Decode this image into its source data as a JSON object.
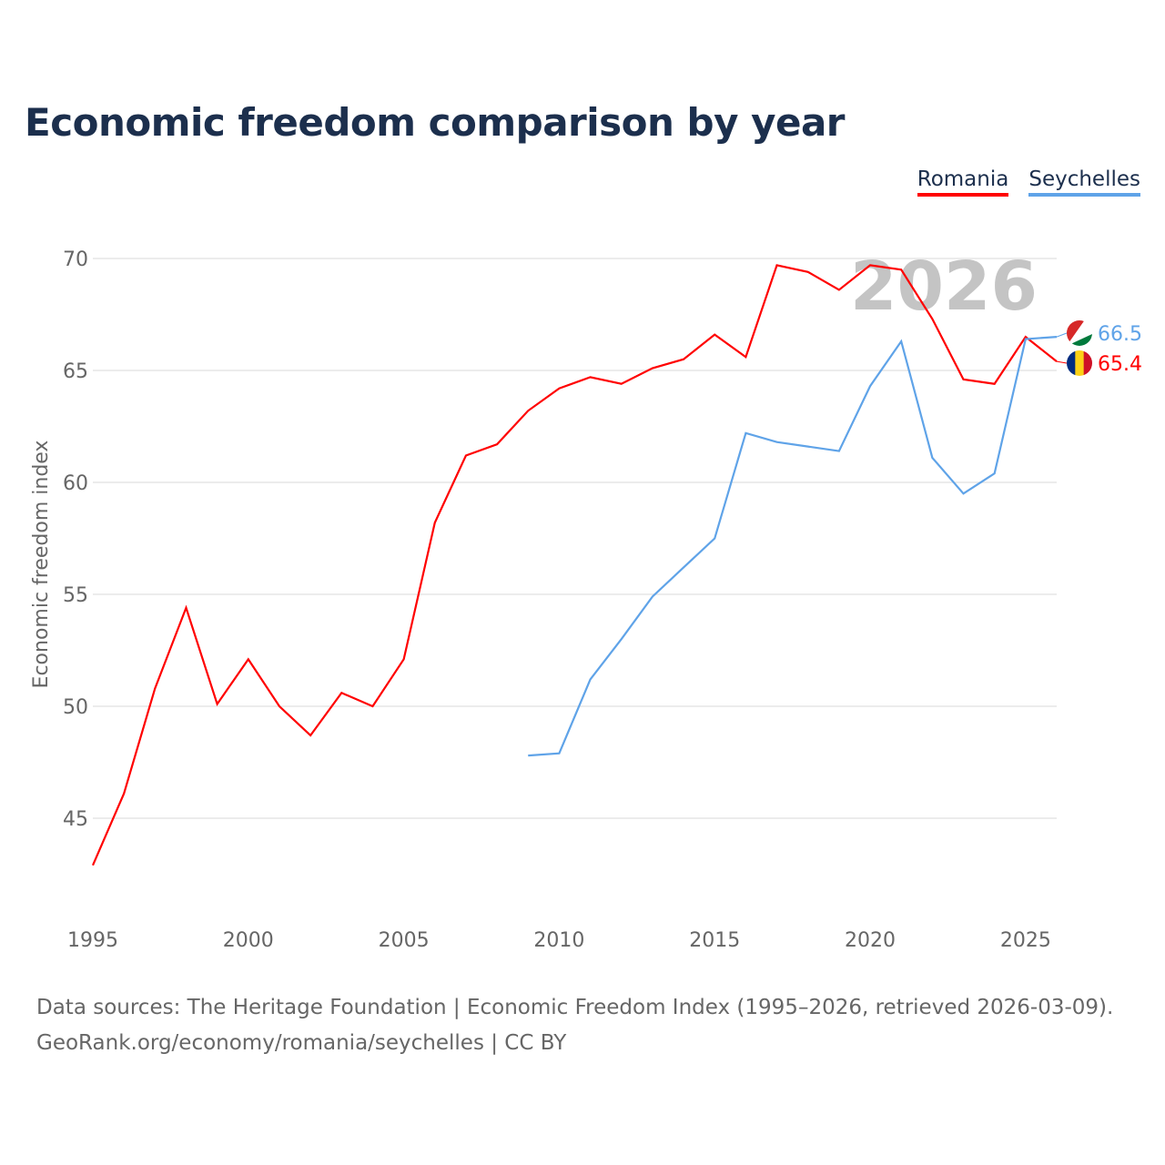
{
  "chart_data": {
    "type": "line",
    "title": "Economic freedom comparison by year",
    "xlabel": "",
    "ylabel": "Economic freedom index",
    "xlim": [
      1995,
      2026
    ],
    "ylim": [
      41.5,
      71.5
    ],
    "yticks": [
      45,
      50,
      55,
      60,
      65,
      70
    ],
    "xticks": [
      1995,
      2000,
      2005,
      2010,
      2015,
      2020,
      2025
    ],
    "grid": true,
    "legend_position": "top-right",
    "current_year_label": "2026",
    "series": [
      {
        "name": "Romania",
        "color": "#ff0000",
        "end_label": "65.4",
        "x": [
          1995,
          1996,
          1997,
          1998,
          1999,
          2000,
          2001,
          2002,
          2003,
          2004,
          2005,
          2006,
          2007,
          2008,
          2009,
          2010,
          2011,
          2012,
          2013,
          2014,
          2015,
          2016,
          2017,
          2018,
          2019,
          2020,
          2021,
          2022,
          2023,
          2024,
          2025,
          2026
        ],
        "y": [
          42.9,
          46.1,
          50.8,
          54.4,
          50.1,
          52.1,
          50.0,
          48.7,
          50.6,
          50.0,
          52.1,
          58.2,
          61.2,
          61.7,
          63.2,
          64.2,
          64.7,
          64.4,
          65.1,
          65.5,
          66.6,
          65.6,
          69.7,
          69.4,
          68.6,
          69.7,
          69.5,
          67.3,
          64.6,
          64.4,
          66.5,
          65.4
        ]
      },
      {
        "name": "Seychelles",
        "color": "#5fa3e8",
        "end_label": "66.5",
        "x": [
          2009,
          2010,
          2011,
          2012,
          2013,
          2014,
          2015,
          2016,
          2017,
          2018,
          2019,
          2020,
          2021,
          2022,
          2023,
          2024,
          2025,
          2026
        ],
        "y": [
          47.8,
          47.9,
          51.2,
          53.0,
          54.9,
          56.2,
          57.5,
          62.2,
          61.8,
          61.6,
          61.4,
          64.3,
          66.3,
          61.1,
          59.5,
          60.4,
          66.4,
          66.5
        ]
      }
    ]
  },
  "footer": {
    "line1": "Data sources: The Heritage Foundation | Economic Freedom Index (1995–2026, retrieved 2026-03-09).",
    "line2": "GeoRank.org/economy/romania/seychelles | CC BY"
  }
}
